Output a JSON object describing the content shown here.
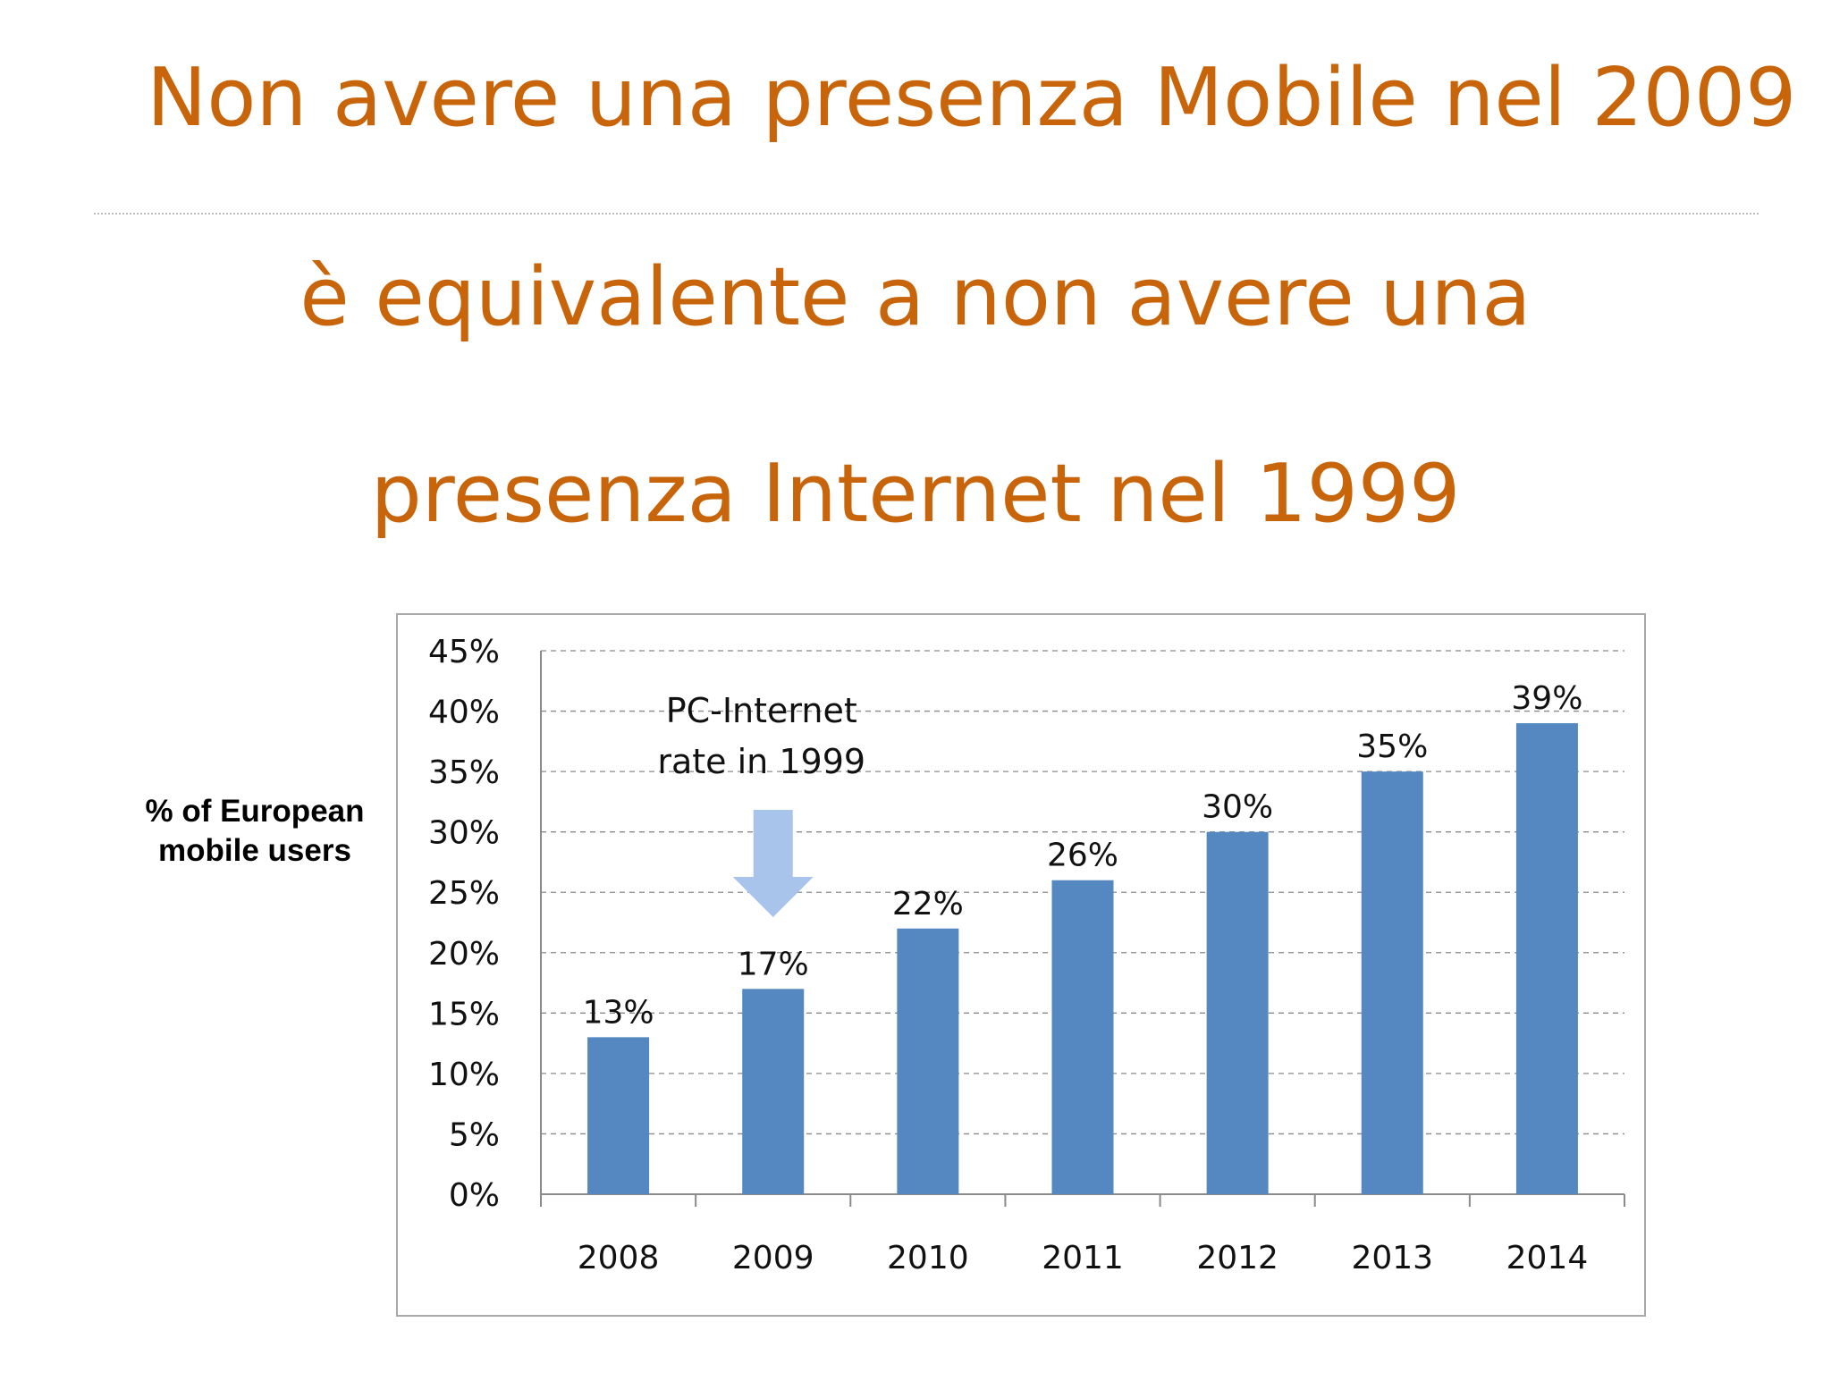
{
  "slide": {
    "line1": "Non avere una presenza Mobile nel 2009",
    "line2": "è equivalente a non avere una",
    "line3": "presenza Internet nel 1999"
  },
  "chart_data": {
    "type": "bar",
    "categories": [
      "2008",
      "2009",
      "2010",
      "2011",
      "2012",
      "2013",
      "2014"
    ],
    "values": [
      13,
      17,
      22,
      26,
      30,
      35,
      39
    ],
    "data_labels": [
      "13%",
      "17%",
      "22%",
      "26%",
      "30%",
      "35%",
      "39%"
    ],
    "ylabel": "% of European mobile users",
    "ylim": [
      0,
      45
    ],
    "yticks": [
      0,
      5,
      10,
      15,
      20,
      25,
      30,
      35,
      40,
      45
    ],
    "ytick_labels": [
      "0%",
      "5%",
      "10%",
      "15%",
      "20%",
      "25%",
      "30%",
      "35%",
      "40%",
      "45%"
    ],
    "grid": true,
    "bar_color": "#5588C0",
    "annotation": {
      "text_line1": "PC-Internet",
      "text_line2": "rate in 1999",
      "points_to": "2009",
      "arrow_color": "#A8C4EA"
    }
  }
}
